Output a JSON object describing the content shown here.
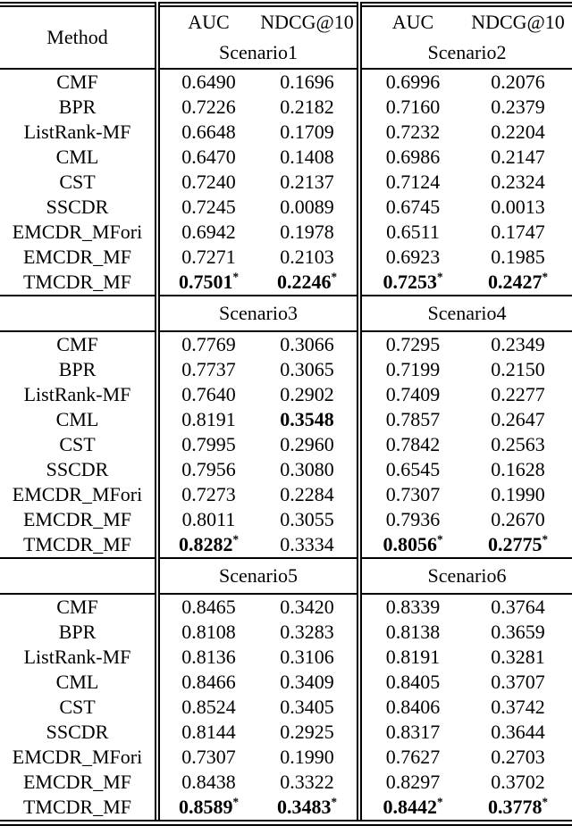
{
  "page": {
    "background": "#ffffff",
    "text_color": "#000000",
    "rule_color": "#000000"
  },
  "table": {
    "method_header": "Method",
    "metric_headers": [
      "AUC",
      "NDCG@10",
      "AUC",
      "NDCG@10"
    ],
    "star_symbol": "*",
    "sections": [
      {
        "scenario_left": "Scenario1",
        "scenario_right": "Scenario2",
        "rows": [
          {
            "method": "CMF",
            "cells": [
              {
                "v": "0.6490"
              },
              {
                "v": "0.1696"
              },
              {
                "v": "0.6996"
              },
              {
                "v": "0.2076"
              }
            ]
          },
          {
            "method": "BPR",
            "cells": [
              {
                "v": "0.7226"
              },
              {
                "v": "0.2182"
              },
              {
                "v": "0.7160"
              },
              {
                "v": "0.2379"
              }
            ]
          },
          {
            "method": "ListRank-MF",
            "cells": [
              {
                "v": "0.6648"
              },
              {
                "v": "0.1709"
              },
              {
                "v": "0.7232"
              },
              {
                "v": "0.2204"
              }
            ]
          },
          {
            "method": "CML",
            "cells": [
              {
                "v": "0.6470"
              },
              {
                "v": "0.1408"
              },
              {
                "v": "0.6986"
              },
              {
                "v": "0.2147"
              }
            ]
          },
          {
            "method": "CST",
            "cells": [
              {
                "v": "0.7240"
              },
              {
                "v": "0.2137"
              },
              {
                "v": "0.7124"
              },
              {
                "v": "0.2324"
              }
            ]
          },
          {
            "method": "SSCDR",
            "cells": [
              {
                "v": "0.7245"
              },
              {
                "v": "0.0089"
              },
              {
                "v": "0.6745"
              },
              {
                "v": "0.0013"
              }
            ]
          },
          {
            "method": "EMCDR_MFori",
            "cells": [
              {
                "v": "0.6942"
              },
              {
                "v": "0.1978"
              },
              {
                "v": "0.6511"
              },
              {
                "v": "0.1747"
              }
            ]
          },
          {
            "method": "EMCDR_MF",
            "cells": [
              {
                "v": "0.7271"
              },
              {
                "v": "0.2103"
              },
              {
                "v": "0.6923"
              },
              {
                "v": "0.1985"
              }
            ]
          },
          {
            "method": "TMCDR_MF",
            "cells": [
              {
                "v": "0.7501",
                "b": 1,
                "s": 1
              },
              {
                "v": "0.2246",
                "b": 1,
                "s": 1
              },
              {
                "v": "0.7253",
                "b": 1,
                "s": 1
              },
              {
                "v": "0.2427",
                "b": 1,
                "s": 1
              }
            ]
          }
        ]
      },
      {
        "scenario_left": "Scenario3",
        "scenario_right": "Scenario4",
        "rows": [
          {
            "method": "CMF",
            "cells": [
              {
                "v": "0.7769"
              },
              {
                "v": "0.3066"
              },
              {
                "v": "0.7295"
              },
              {
                "v": "0.2349"
              }
            ]
          },
          {
            "method": "BPR",
            "cells": [
              {
                "v": "0.7737"
              },
              {
                "v": "0.3065"
              },
              {
                "v": "0.7199"
              },
              {
                "v": "0.2150"
              }
            ]
          },
          {
            "method": "ListRank-MF",
            "cells": [
              {
                "v": "0.7640"
              },
              {
                "v": "0.2902"
              },
              {
                "v": "0.7409"
              },
              {
                "v": "0.2277"
              }
            ]
          },
          {
            "method": "CML",
            "cells": [
              {
                "v": "0.8191"
              },
              {
                "v": "0.3548",
                "b": 1
              },
              {
                "v": "0.7857"
              },
              {
                "v": "0.2647"
              }
            ]
          },
          {
            "method": "CST",
            "cells": [
              {
                "v": "0.7995"
              },
              {
                "v": "0.2960"
              },
              {
                "v": "0.7842"
              },
              {
                "v": "0.2563"
              }
            ]
          },
          {
            "method": "SSCDR",
            "cells": [
              {
                "v": "0.7956"
              },
              {
                "v": "0.3080"
              },
              {
                "v": "0.6545"
              },
              {
                "v": "0.1628"
              }
            ]
          },
          {
            "method": "EMCDR_MFori",
            "cells": [
              {
                "v": "0.7273"
              },
              {
                "v": "0.2284"
              },
              {
                "v": "0.7307"
              },
              {
                "v": "0.1990"
              }
            ]
          },
          {
            "method": "EMCDR_MF",
            "cells": [
              {
                "v": "0.8011"
              },
              {
                "v": "0.3055"
              },
              {
                "v": "0.7936"
              },
              {
                "v": "0.2670"
              }
            ]
          },
          {
            "method": "TMCDR_MF",
            "cells": [
              {
                "v": "0.8282",
                "b": 1,
                "s": 1
              },
              {
                "v": "0.3334"
              },
              {
                "v": "0.8056",
                "b": 1,
                "s": 1
              },
              {
                "v": "0.2775",
                "b": 1,
                "s": 1
              }
            ]
          }
        ]
      },
      {
        "scenario_left": "Scenario5",
        "scenario_right": "Scenario6",
        "rows": [
          {
            "method": "CMF",
            "cells": [
              {
                "v": "0.8465"
              },
              {
                "v": "0.3420"
              },
              {
                "v": "0.8339"
              },
              {
                "v": "0.3764"
              }
            ]
          },
          {
            "method": "BPR",
            "cells": [
              {
                "v": "0.8108"
              },
              {
                "v": "0.3283"
              },
              {
                "v": "0.8138"
              },
              {
                "v": "0.3659"
              }
            ]
          },
          {
            "method": "ListRank-MF",
            "cells": [
              {
                "v": "0.8136"
              },
              {
                "v": "0.3106"
              },
              {
                "v": "0.8191"
              },
              {
                "v": "0.3281"
              }
            ]
          },
          {
            "method": "CML",
            "cells": [
              {
                "v": "0.8466"
              },
              {
                "v": "0.3409"
              },
              {
                "v": "0.8405"
              },
              {
                "v": "0.3707"
              }
            ]
          },
          {
            "method": "CST",
            "cells": [
              {
                "v": "0.8524"
              },
              {
                "v": "0.3405"
              },
              {
                "v": "0.8406"
              },
              {
                "v": "0.3742"
              }
            ]
          },
          {
            "method": "SSCDR",
            "cells": [
              {
                "v": "0.8144"
              },
              {
                "v": "0.2925"
              },
              {
                "v": "0.8317"
              },
              {
                "v": "0.3644"
              }
            ]
          },
          {
            "method": "EMCDR_MFori",
            "cells": [
              {
                "v": "0.7307"
              },
              {
                "v": "0.1990"
              },
              {
                "v": "0.7627"
              },
              {
                "v": "0.2703"
              }
            ]
          },
          {
            "method": "EMCDR_MF",
            "cells": [
              {
                "v": "0.8438"
              },
              {
                "v": "0.3322"
              },
              {
                "v": "0.8297"
              },
              {
                "v": "0.3702"
              }
            ]
          },
          {
            "method": "TMCDR_MF",
            "cells": [
              {
                "v": "0.8589",
                "b": 1,
                "s": 1
              },
              {
                "v": "0.3483",
                "b": 1,
                "s": 1
              },
              {
                "v": "0.8442",
                "b": 1,
                "s": 1
              },
              {
                "v": "0.3778",
                "b": 1,
                "s": 1
              }
            ]
          }
        ]
      }
    ]
  }
}
